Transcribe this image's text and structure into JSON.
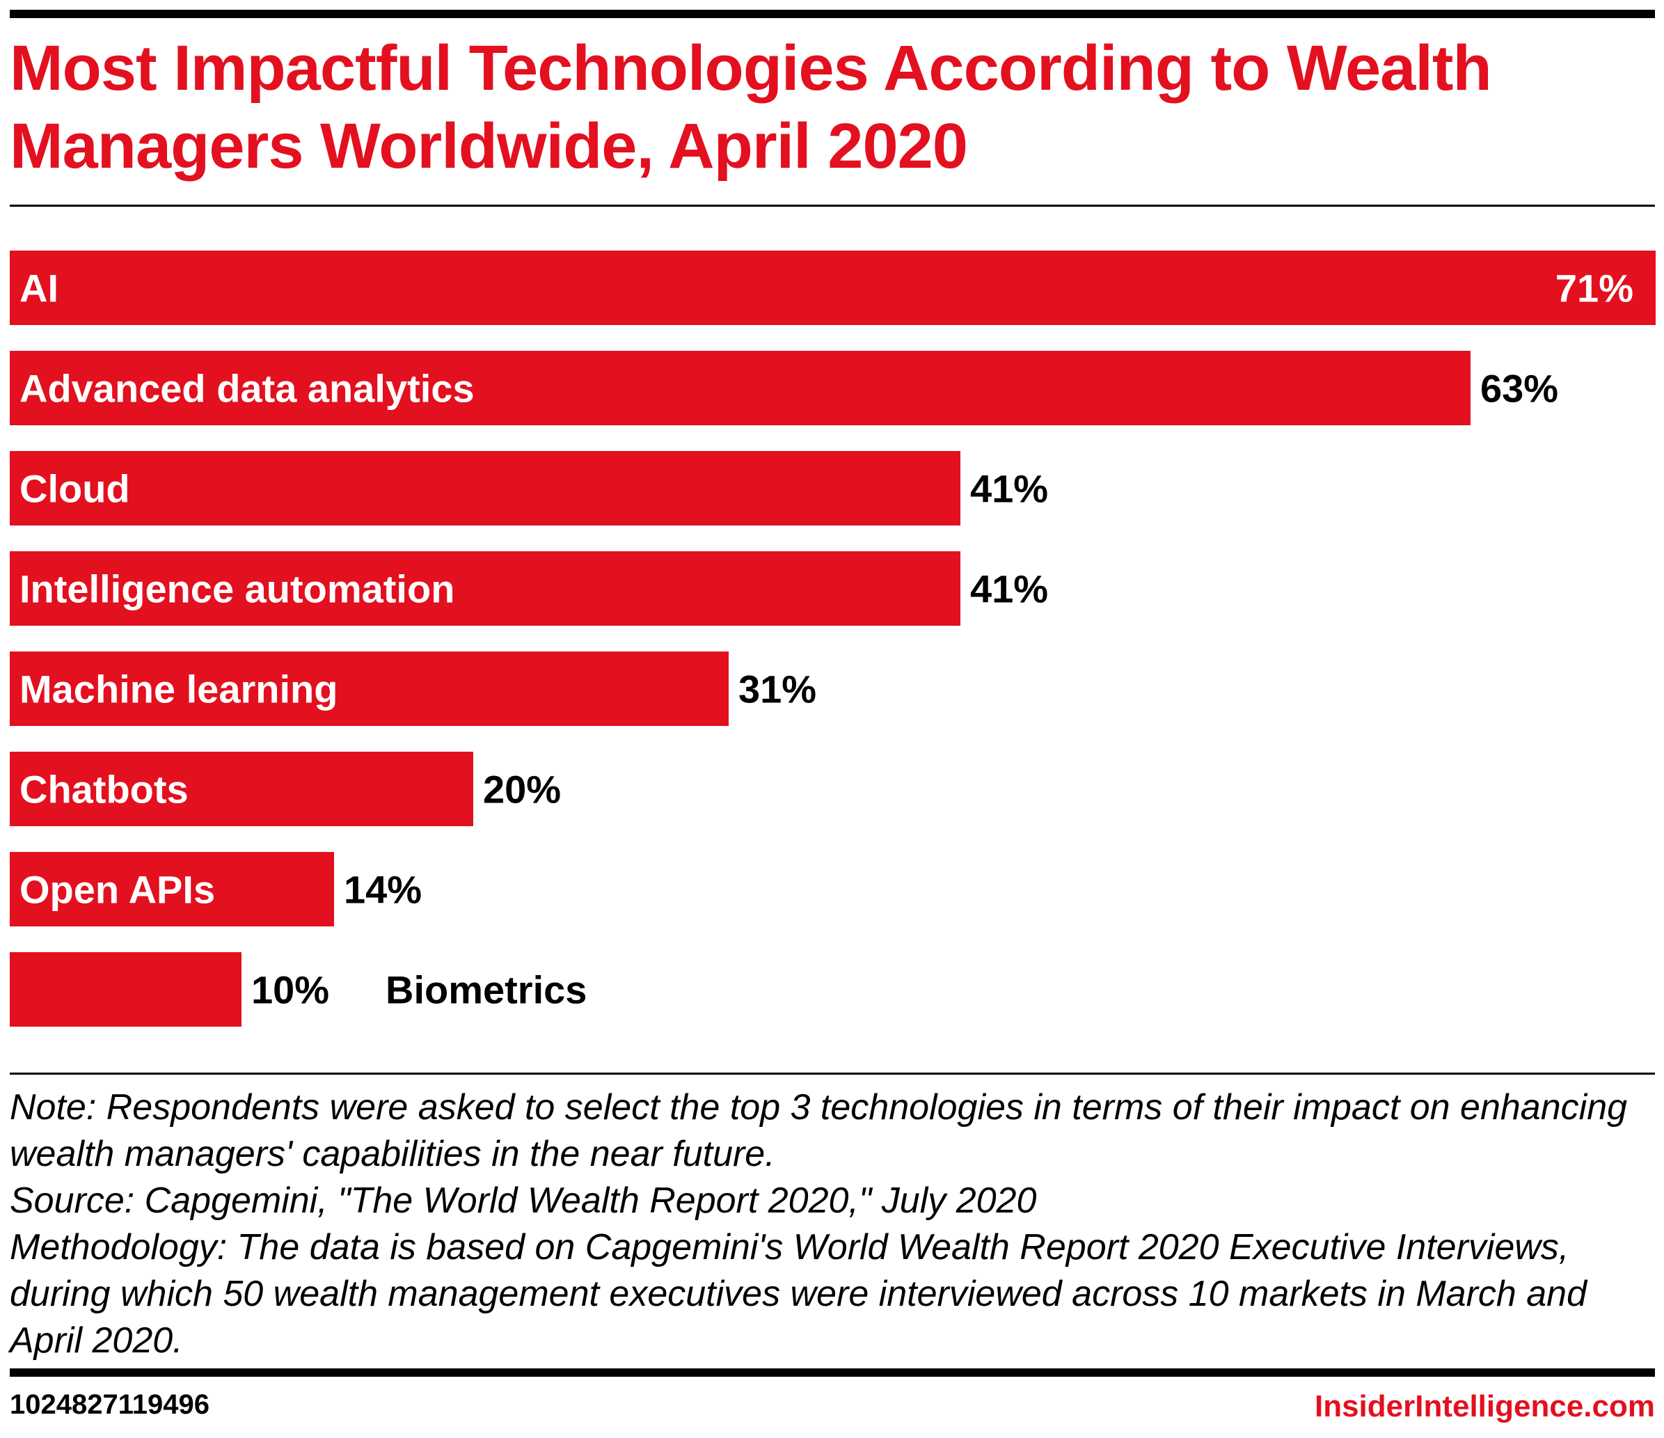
{
  "title": "Most Impactful Technologies According to Wealth Managers Worldwide, April 2020",
  "chart_data": {
    "type": "bar",
    "orientation": "horizontal",
    "categories": [
      "AI",
      "Advanced data analytics",
      "Cloud",
      "Intelligence automation",
      "Machine learning",
      "Chatbots",
      "Open APIs",
      "Biometrics"
    ],
    "values": [
      71,
      63,
      41,
      41,
      31,
      20,
      14,
      10
    ],
    "value_labels": [
      "71%",
      "63%",
      "41%",
      "41%",
      "31%",
      "20%",
      "14%",
      "10%"
    ],
    "unit": "%",
    "xlim": [
      0,
      71
    ],
    "grid": false,
    "bar_color": "#e3101f"
  },
  "notes": {
    "note": "Note: Respondents were asked to select the top 3 technologies in terms of their impact on enhancing wealth managers' capabilities in the near future.",
    "source": "Source: Capgemini, \"The World Wealth Report 2020,\" July 2020",
    "methodology": "Methodology: The data is based on Capgemini's World Wealth Report 2020 Executive Interviews, during which 50 wealth management executives were interviewed across 10 markets in March and April 2020."
  },
  "footer": {
    "chart_id": "1024827119496",
    "brand": "InsiderIntelligence.com"
  },
  "colors": {
    "accent": "#e3101f",
    "text": "#000000",
    "bar_text": "#ffffff"
  }
}
